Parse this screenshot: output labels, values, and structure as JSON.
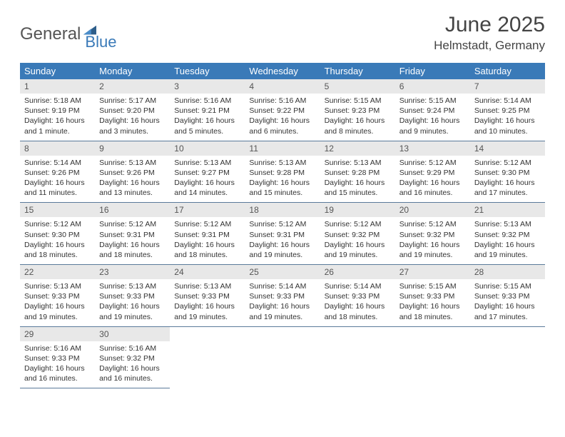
{
  "logo": {
    "part1": "General",
    "part2": "Blue"
  },
  "title": "June 2025",
  "location": "Helmstadt, Germany",
  "colors": {
    "header_bg": "#3a7ab8",
    "daynum_bg": "#e8e8e8",
    "row_border": "#5a7a9a",
    "text": "#333333"
  },
  "day_headers": [
    "Sunday",
    "Monday",
    "Tuesday",
    "Wednesday",
    "Thursday",
    "Friday",
    "Saturday"
  ],
  "weeks": [
    [
      {
        "n": "1",
        "sunrise": "5:18 AM",
        "sunset": "9:19 PM",
        "daylight": "16 hours and 1 minute."
      },
      {
        "n": "2",
        "sunrise": "5:17 AM",
        "sunset": "9:20 PM",
        "daylight": "16 hours and 3 minutes."
      },
      {
        "n": "3",
        "sunrise": "5:16 AM",
        "sunset": "9:21 PM",
        "daylight": "16 hours and 5 minutes."
      },
      {
        "n": "4",
        "sunrise": "5:16 AM",
        "sunset": "9:22 PM",
        "daylight": "16 hours and 6 minutes."
      },
      {
        "n": "5",
        "sunrise": "5:15 AM",
        "sunset": "9:23 PM",
        "daylight": "16 hours and 8 minutes."
      },
      {
        "n": "6",
        "sunrise": "5:15 AM",
        "sunset": "9:24 PM",
        "daylight": "16 hours and 9 minutes."
      },
      {
        "n": "7",
        "sunrise": "5:14 AM",
        "sunset": "9:25 PM",
        "daylight": "16 hours and 10 minutes."
      }
    ],
    [
      {
        "n": "8",
        "sunrise": "5:14 AM",
        "sunset": "9:26 PM",
        "daylight": "16 hours and 11 minutes."
      },
      {
        "n": "9",
        "sunrise": "5:13 AM",
        "sunset": "9:26 PM",
        "daylight": "16 hours and 13 minutes."
      },
      {
        "n": "10",
        "sunrise": "5:13 AM",
        "sunset": "9:27 PM",
        "daylight": "16 hours and 14 minutes."
      },
      {
        "n": "11",
        "sunrise": "5:13 AM",
        "sunset": "9:28 PM",
        "daylight": "16 hours and 15 minutes."
      },
      {
        "n": "12",
        "sunrise": "5:13 AM",
        "sunset": "9:28 PM",
        "daylight": "16 hours and 15 minutes."
      },
      {
        "n": "13",
        "sunrise": "5:12 AM",
        "sunset": "9:29 PM",
        "daylight": "16 hours and 16 minutes."
      },
      {
        "n": "14",
        "sunrise": "5:12 AM",
        "sunset": "9:30 PM",
        "daylight": "16 hours and 17 minutes."
      }
    ],
    [
      {
        "n": "15",
        "sunrise": "5:12 AM",
        "sunset": "9:30 PM",
        "daylight": "16 hours and 18 minutes."
      },
      {
        "n": "16",
        "sunrise": "5:12 AM",
        "sunset": "9:31 PM",
        "daylight": "16 hours and 18 minutes."
      },
      {
        "n": "17",
        "sunrise": "5:12 AM",
        "sunset": "9:31 PM",
        "daylight": "16 hours and 18 minutes."
      },
      {
        "n": "18",
        "sunrise": "5:12 AM",
        "sunset": "9:31 PM",
        "daylight": "16 hours and 19 minutes."
      },
      {
        "n": "19",
        "sunrise": "5:12 AM",
        "sunset": "9:32 PM",
        "daylight": "16 hours and 19 minutes."
      },
      {
        "n": "20",
        "sunrise": "5:12 AM",
        "sunset": "9:32 PM",
        "daylight": "16 hours and 19 minutes."
      },
      {
        "n": "21",
        "sunrise": "5:13 AM",
        "sunset": "9:32 PM",
        "daylight": "16 hours and 19 minutes."
      }
    ],
    [
      {
        "n": "22",
        "sunrise": "5:13 AM",
        "sunset": "9:33 PM",
        "daylight": "16 hours and 19 minutes."
      },
      {
        "n": "23",
        "sunrise": "5:13 AM",
        "sunset": "9:33 PM",
        "daylight": "16 hours and 19 minutes."
      },
      {
        "n": "24",
        "sunrise": "5:13 AM",
        "sunset": "9:33 PM",
        "daylight": "16 hours and 19 minutes."
      },
      {
        "n": "25",
        "sunrise": "5:14 AM",
        "sunset": "9:33 PM",
        "daylight": "16 hours and 19 minutes."
      },
      {
        "n": "26",
        "sunrise": "5:14 AM",
        "sunset": "9:33 PM",
        "daylight": "16 hours and 18 minutes."
      },
      {
        "n": "27",
        "sunrise": "5:15 AM",
        "sunset": "9:33 PM",
        "daylight": "16 hours and 18 minutes."
      },
      {
        "n": "28",
        "sunrise": "5:15 AM",
        "sunset": "9:33 PM",
        "daylight": "16 hours and 17 minutes."
      }
    ],
    [
      {
        "n": "29",
        "sunrise": "5:16 AM",
        "sunset": "9:33 PM",
        "daylight": "16 hours and 16 minutes."
      },
      {
        "n": "30",
        "sunrise": "5:16 AM",
        "sunset": "9:32 PM",
        "daylight": "16 hours and 16 minutes."
      },
      null,
      null,
      null,
      null,
      null
    ]
  ],
  "labels": {
    "sunrise": "Sunrise: ",
    "sunset": "Sunset: ",
    "daylight": "Daylight: "
  }
}
